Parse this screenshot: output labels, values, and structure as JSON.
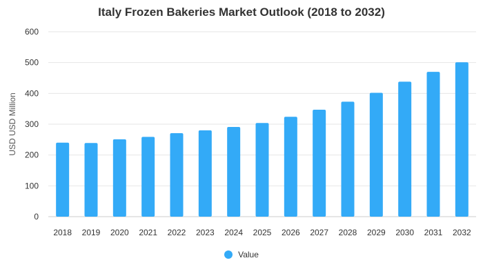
{
  "chart_data": {
    "type": "bar",
    "title": "Italy Frozen Bakeries Market Outlook (2018 to 2032)",
    "xlabel": "",
    "ylabel": "USD USD Million",
    "ylim": [
      0,
      600
    ],
    "yticks": [
      0,
      100,
      200,
      300,
      400,
      500,
      600
    ],
    "grid": true,
    "legend_position": "bottom",
    "categories": [
      "2018",
      "2019",
      "2020",
      "2021",
      "2022",
      "2023",
      "2024",
      "2025",
      "2026",
      "2027",
      "2028",
      "2029",
      "2030",
      "2031",
      "2032"
    ],
    "series": [
      {
        "name": "Value",
        "color": "#33aaf7",
        "values": [
          240,
          239,
          251,
          259,
          271,
          280,
          291,
          304,
          324,
          347,
          373,
          402,
          438,
          470,
          501
        ]
      }
    ]
  }
}
